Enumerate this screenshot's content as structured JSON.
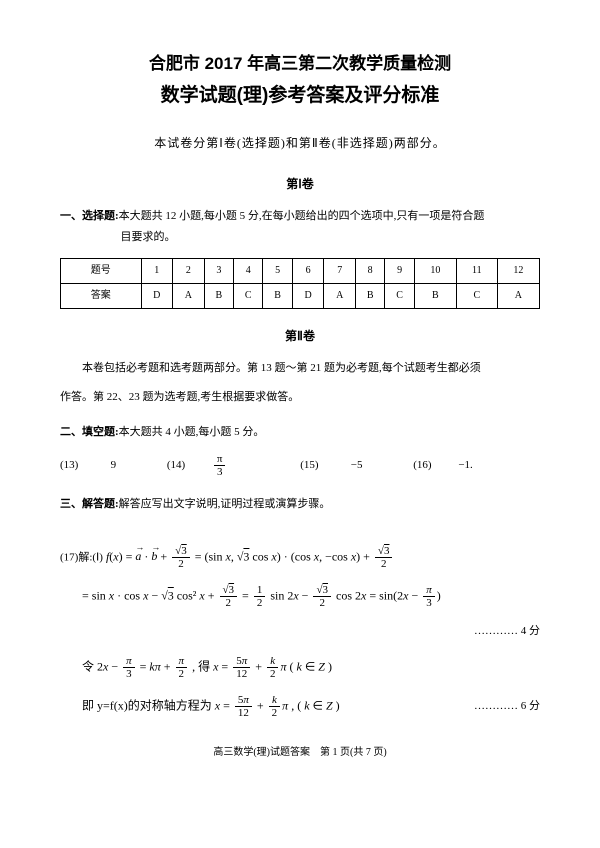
{
  "title_line1": "合肥市 2017 年高三第二次教学质量检测",
  "title_line2": "数学试题(理)参考答案及评分标准",
  "sub_heading": "本试卷分第Ⅰ卷(选择题)和第Ⅱ卷(非选择题)两部分。",
  "volume1": "第Ⅰ卷",
  "volume2": "第Ⅱ卷",
  "section1_head_bold": "一、选择题:",
  "section1_head_rest": "本大题共 12 小题,每小题 5 分,在每小题给出的四个选项中,只有一项是符合题",
  "section1_head_rest2": "目要求的。",
  "answer_table": {
    "row_label1": "题号",
    "row_label2": "答案",
    "nums": [
      "1",
      "2",
      "3",
      "4",
      "5",
      "6",
      "7",
      "8",
      "9",
      "10",
      "11",
      "12"
    ],
    "ans": [
      "D",
      "A",
      "B",
      "C",
      "B",
      "D",
      "A",
      "B",
      "C",
      "B",
      "C",
      "A"
    ]
  },
  "volume2_intro1": "本卷包括必考题和选考题两部分。第 13 题～第 21 题为必考题,每个试题考生都必须",
  "volume2_intro2": "作答。第 22、23 题为选考题,考生根据要求做答。",
  "section2_head_bold": "二、填空题:",
  "section2_head_rest": "本大题共 4 小题,每小题 5 分。",
  "fill": {
    "q13_label": "(13)",
    "q13_val": "9",
    "q14_label": "(14)",
    "q14_val_num": "π",
    "q14_val_den": "3",
    "q15_label": "(15)",
    "q15_val": "−5",
    "q16_label": "(16)",
    "q16_val": "−1."
  },
  "section3_head_bold": "三、解答题:",
  "section3_head_rest": "解答应写出文字说明,证明过程或演算步骤。",
  "q17_label": "(17)解:(Ⅰ)",
  "score1": "………… 4 分",
  "score2": "………… 6 分",
  "footer_text": "高三数学(理)试题答案　第 1 页(共 7 页)"
}
